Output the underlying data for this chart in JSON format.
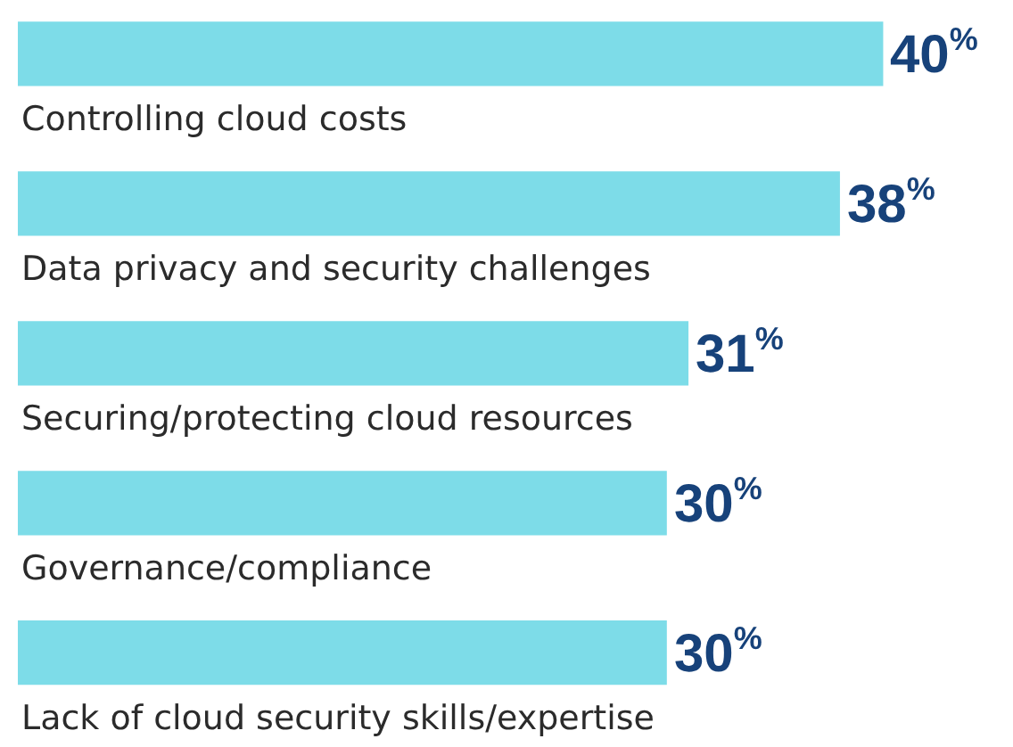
{
  "chart_data": {
    "type": "bar",
    "orientation": "horizontal",
    "categories": [
      "Controlling cloud costs",
      "Data privacy and security challenges",
      "Securing/protecting cloud resources",
      "Governance/compliance",
      "Lack of cloud security skills/expertise"
    ],
    "values": [
      40,
      38,
      31,
      30,
      30
    ],
    "value_labels": [
      "40$^{%}$",
      "38$^{%}$",
      "31$^{%}$",
      "30$^{%}$",
      "30$^{%}$"
    ],
    "color": "#7ddce8",
    "xlim": [
      0,
      46
    ]
  }
}
